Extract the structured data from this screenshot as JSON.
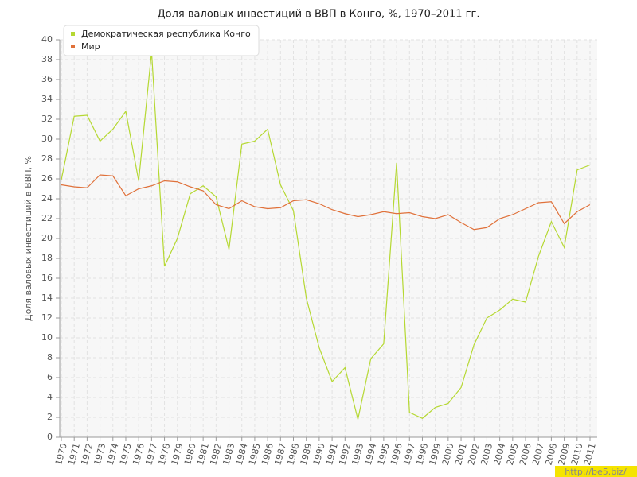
{
  "chart_data": {
    "type": "line",
    "title": "Доля валовых инвестиций в ВВП в Конго, %, 1970–2011 гг.",
    "y_label": "Доля валовых инвестиций в ВВП, %",
    "categories": [
      "1970",
      "1971",
      "1972",
      "1973",
      "1974",
      "1975",
      "1976",
      "1977",
      "1978",
      "1979",
      "1980",
      "1981",
      "1982",
      "1983",
      "1984",
      "1985",
      "1986",
      "1987",
      "1988",
      "1989",
      "1990",
      "1991",
      "1992",
      "1993",
      "1994",
      "1995",
      "1996",
      "1997",
      "1998",
      "1999",
      "2000",
      "2001",
      "2002",
      "2003",
      "2004",
      "2005",
      "2006",
      "2007",
      "2008",
      "2009",
      "2010",
      "2011"
    ],
    "series": [
      {
        "name": "Демократическая республика Конго",
        "color": "#b5d832",
        "values": [
          25.9,
          32.3,
          32.4,
          29.8,
          31.0,
          32.8,
          25.8,
          38.8,
          17.2,
          20.0,
          24.5,
          25.3,
          24.2,
          18.9,
          29.5,
          29.8,
          31.0,
          25.4,
          22.8,
          14.0,
          9.0,
          5.6,
          7.0,
          1.8,
          7.9,
          9.4,
          27.6,
          2.5,
          1.9,
          3.0,
          3.4,
          5.0,
          9.3,
          12.0,
          12.8,
          13.9,
          13.6,
          18.2,
          21.7,
          19.1,
          26.9,
          27.4
        ]
      },
      {
        "name": "Мир",
        "color": "#e0713a",
        "values": [
          25.4,
          25.2,
          25.1,
          26.4,
          26.3,
          24.3,
          25.0,
          25.3,
          25.8,
          25.7,
          25.2,
          24.8,
          23.4,
          23.0,
          23.8,
          23.2,
          23.0,
          23.1,
          23.8,
          23.9,
          23.5,
          22.9,
          22.5,
          22.2,
          22.4,
          22.7,
          22.5,
          22.6,
          22.2,
          22.0,
          22.4,
          21.6,
          20.9,
          21.1,
          22.0,
          22.4,
          23.0,
          23.6,
          23.7,
          21.5,
          22.7,
          23.4
        ]
      }
    ],
    "ylim": [
      0,
      40
    ],
    "yticks": [
      0,
      2,
      4,
      6,
      8,
      10,
      12,
      14,
      16,
      18,
      20,
      22,
      24,
      26,
      28,
      30,
      32,
      34,
      36,
      38,
      40
    ],
    "grid": true,
    "legend": "top-left",
    "watermark": "http://be5.biz/"
  }
}
